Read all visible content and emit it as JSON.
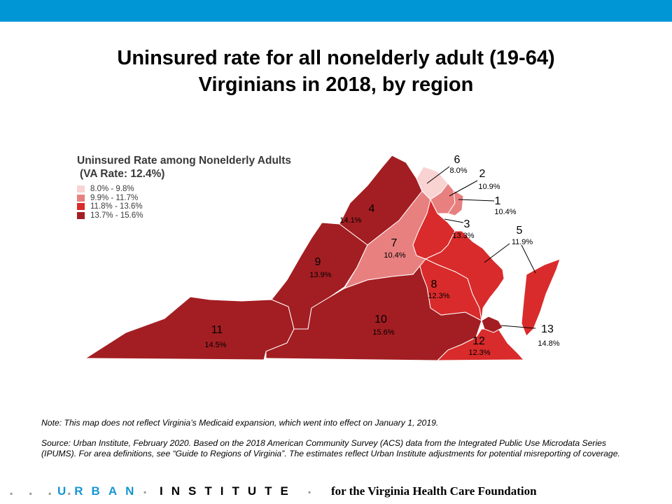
{
  "title_line1": "Uninsured rate for all nonelderly adult (19-64)",
  "title_line2": "Virginians in 2018, by region",
  "legend": {
    "title_line1": "Uninsured Rate among Nonelderly Adults",
    "title_line2": "(VA Rate: 12.4%)",
    "items": [
      {
        "label": "8.0% - 9.8%",
        "color": "#f8d3d2"
      },
      {
        "label": "9.9% - 11.7%",
        "color": "#e88080"
      },
      {
        "label": "11.8% - 13.6%",
        "color": "#d92b2b"
      },
      {
        "label": "13.7% - 15.6%",
        "color": "#a31e22"
      }
    ]
  },
  "regions": [
    {
      "id": "1",
      "rate": "10.4%",
      "color": "#e88080"
    },
    {
      "id": "2",
      "rate": "10.9%",
      "color": "#e88080"
    },
    {
      "id": "3",
      "rate": "13.3%",
      "color": "#d92b2b"
    },
    {
      "id": "4",
      "rate": "14.1%",
      "color": "#a31e22"
    },
    {
      "id": "5",
      "rate": "11.9%",
      "color": "#d92b2b"
    },
    {
      "id": "6",
      "rate": "8.0%",
      "color": "#f8d3d2"
    },
    {
      "id": "7",
      "rate": "10.4%",
      "color": "#e88080"
    },
    {
      "id": "8",
      "rate": "12.3%",
      "color": "#d92b2b"
    },
    {
      "id": "9",
      "rate": "13.9%",
      "color": "#a31e22"
    },
    {
      "id": "10",
      "rate": "15.6%",
      "color": "#a31e22"
    },
    {
      "id": "11",
      "rate": "14.5%",
      "color": "#a31e22"
    },
    {
      "id": "12",
      "rate": "12.3%",
      "color": "#d92b2b"
    },
    {
      "id": "13",
      "rate": "14.8%",
      "color": "#a31e22"
    }
  ],
  "note": "Note: This map does not reflect Virginia’s  Medicaid expansion, which went into effect on January 1, 2019.",
  "source": "Source: Urban Institute, February 2020. Based on the 2018 American Community Survey (ACS) data from the Integrated Public Use Microdata Series (IPUMS). For area definitions, see “Guide to Regions of Virginia”.  The estimates reflect Urban Institute adjustments for potential misreporting of coverage.",
  "footer": {
    "brand_urban": "URBAN",
    "brand_institute": "INSTITUTE",
    "tagline": "for the Virginia Health Care Foundation"
  }
}
